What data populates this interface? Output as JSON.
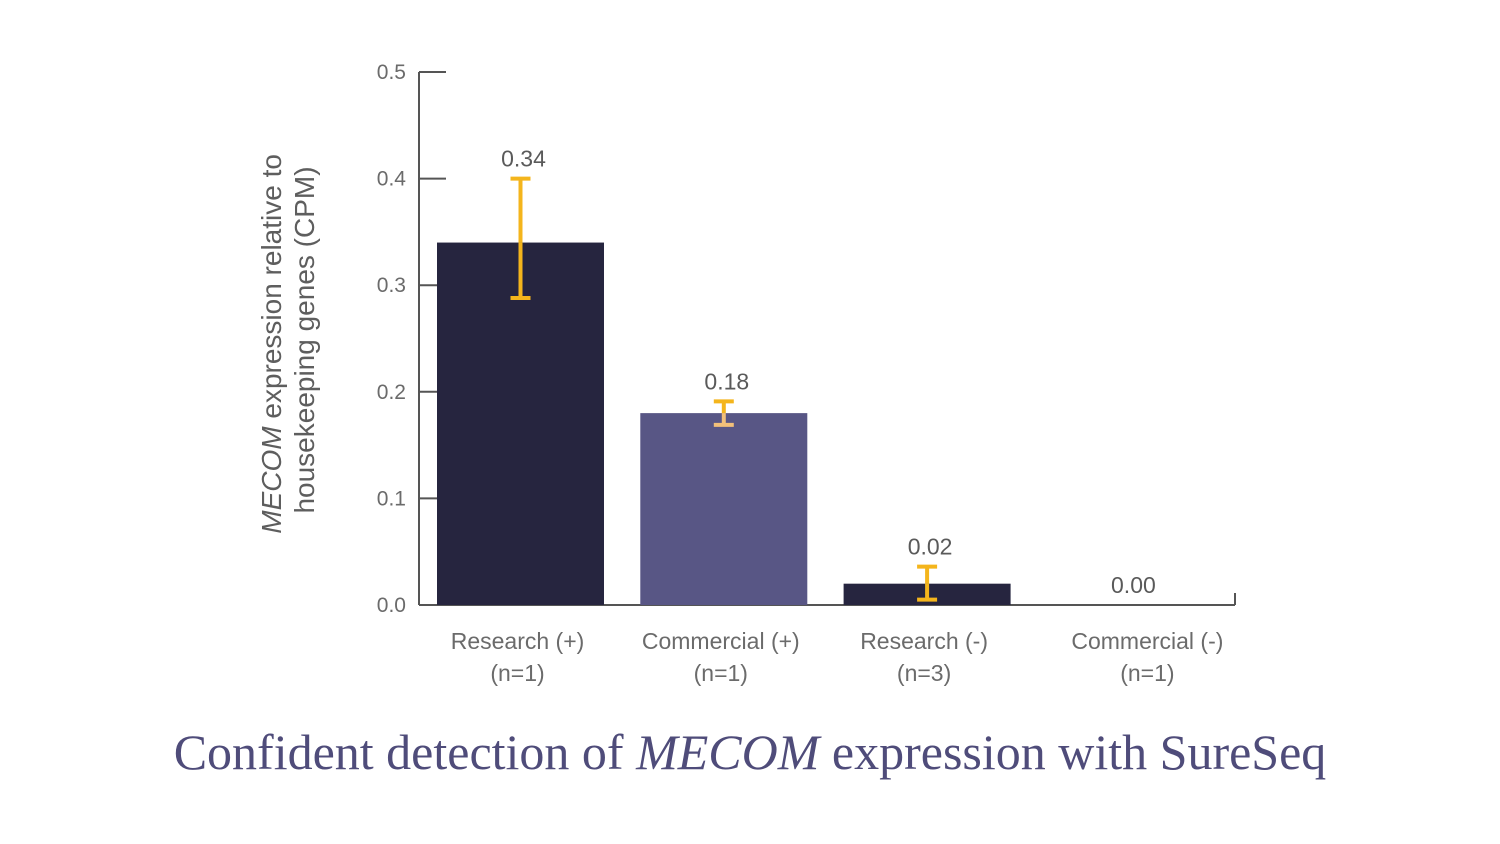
{
  "caption": {
    "before": "Confident detection of",
    "italic": "MECOM",
    "after": "expression with SureSeq"
  },
  "colors": {
    "dark_bar": "#26253f",
    "light_bar": "#585685",
    "error_bar": "#f4b51c",
    "error_bar_light": "#f2c07a",
    "axis": "#555555",
    "caption": "#4f4c7a"
  },
  "chart_data": {
    "type": "bar",
    "categories": [
      [
        "Research (+)",
        "(n=1)"
      ],
      [
        "Commercial (+)",
        "(n=1)"
      ],
      [
        "Research (-)",
        "(n=3)"
      ],
      [
        "Commercial (-)",
        "(n=1)"
      ]
    ],
    "values": [
      0.34,
      0.18,
      0.02,
      0.0
    ],
    "value_labels": [
      "0.34",
      "0.18",
      "0.02",
      "0.00"
    ],
    "error_low": [
      0.288,
      0.169,
      0.005,
      null
    ],
    "error_high": [
      0.4,
      0.191,
      0.036,
      null
    ],
    "bar_colors": [
      "#26253f",
      "#585685",
      "#26253f",
      "#585685"
    ],
    "ylabel_italic": "MECOM",
    "ylabel_rest": "expression relative to",
    "ylabel_line2": "housekeeping genes (CPM)",
    "xlabel": "",
    "ylim": [
      0,
      0.5
    ],
    "yticks": [
      "0.0",
      "0.1",
      "0.2",
      "0.3",
      "0.4",
      "0.5"
    ],
    "grid": false,
    "legend": "none"
  }
}
